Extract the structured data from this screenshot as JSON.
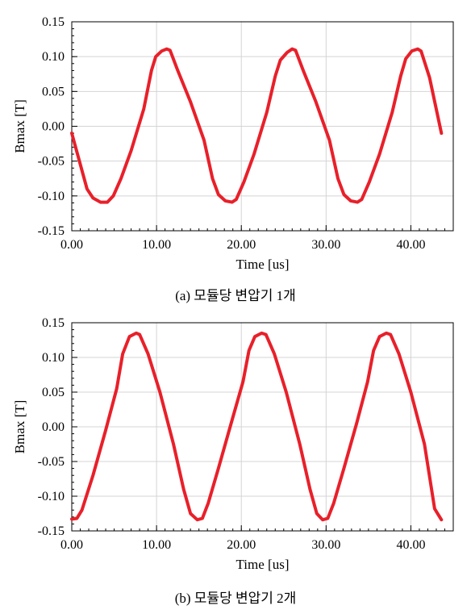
{
  "chart_data": [
    {
      "type": "line",
      "caption": "(a) 모듈당 변압기 1개",
      "xlabel": "Time [us]",
      "ylabel": "Bmax [T]",
      "xlim": [
        0,
        45
      ],
      "ylim": [
        -0.15,
        0.15
      ],
      "xticks": [
        "0.00",
        "10.00",
        "20.00",
        "30.00",
        "40.00"
      ],
      "xtick_values": [
        0,
        10,
        20,
        30,
        40
      ],
      "yticks": [
        "0.15",
        "0.10",
        "0.05",
        "0.00",
        "-0.05",
        "-0.10",
        "-0.15"
      ],
      "ytick_values": [
        0.15,
        0.1,
        0.05,
        0.0,
        -0.05,
        -0.1,
        -0.15
      ],
      "grid": true,
      "series_color": "#e8202a",
      "series": [
        {
          "x": [
            0.0,
            1.8,
            2.5,
            3.4,
            4.2,
            4.9,
            5.8,
            7.0,
            8.5,
            9.4,
            9.9,
            10.6,
            11.2,
            11.6,
            12.5,
            14.0,
            15.6,
            16.6,
            17.3,
            18.1,
            18.9,
            19.4,
            20.3,
            21.5,
            23.0,
            24.0,
            24.6,
            25.4,
            26.0,
            26.4,
            27.3,
            28.8,
            30.4,
            31.4,
            32.1,
            32.9,
            33.7,
            34.2,
            35.1,
            36.3,
            37.8,
            38.8,
            39.4,
            40.1,
            40.8,
            41.2,
            42.2,
            43.6
          ],
          "y": [
            -0.01,
            -0.09,
            -0.103,
            -0.109,
            -0.109,
            -0.1,
            -0.075,
            -0.035,
            0.025,
            0.08,
            0.1,
            0.108,
            0.111,
            0.109,
            0.08,
            0.035,
            -0.02,
            -0.075,
            -0.098,
            -0.107,
            -0.109,
            -0.105,
            -0.08,
            -0.04,
            0.02,
            0.072,
            0.095,
            0.106,
            0.111,
            0.109,
            0.08,
            0.035,
            -0.02,
            -0.075,
            -0.098,
            -0.107,
            -0.109,
            -0.105,
            -0.08,
            -0.04,
            0.02,
            0.072,
            0.097,
            0.108,
            0.111,
            0.108,
            0.07,
            -0.01
          ]
        }
      ]
    },
    {
      "type": "line",
      "caption": "(b) 모듈당 변압기 2개",
      "xlabel": "Time [us]",
      "ylabel": "Bmax [T]",
      "xlim": [
        0,
        45
      ],
      "ylim": [
        -0.15,
        0.15
      ],
      "xticks": [
        "0.00",
        "10.00",
        "20.00",
        "30.00",
        "40.00"
      ],
      "xtick_values": [
        0,
        10,
        20,
        30,
        40
      ],
      "yticks": [
        "0.15",
        "0.10",
        "0.05",
        "0.00",
        "-0.05",
        "-0.10",
        "-0.15"
      ],
      "ytick_values": [
        0.15,
        0.1,
        0.05,
        0.0,
        -0.05,
        -0.1,
        -0.15
      ],
      "grid": true,
      "series_color": "#e8202a",
      "series": [
        {
          "x": [
            0.0,
            0.6,
            1.2,
            2.5,
            4.0,
            5.3,
            6.0,
            6.8,
            7.6,
            8.0,
            9.0,
            10.4,
            12.0,
            13.2,
            14.0,
            14.8,
            15.4,
            16.1,
            17.3,
            18.8,
            20.2,
            20.9,
            21.6,
            22.4,
            22.9,
            23.9,
            25.3,
            26.9,
            28.1,
            28.9,
            29.6,
            30.2,
            30.9,
            32.1,
            33.6,
            34.9,
            35.6,
            36.3,
            37.1,
            37.6,
            38.6,
            40.0,
            41.6,
            42.8,
            43.6
          ],
          "y": [
            -0.133,
            -0.132,
            -0.12,
            -0.07,
            -0.005,
            0.055,
            0.105,
            0.13,
            0.135,
            0.133,
            0.105,
            0.05,
            -0.025,
            -0.09,
            -0.125,
            -0.134,
            -0.132,
            -0.11,
            -0.06,
            0.005,
            0.065,
            0.11,
            0.13,
            0.135,
            0.133,
            0.105,
            0.05,
            -0.025,
            -0.09,
            -0.125,
            -0.134,
            -0.132,
            -0.11,
            -0.06,
            0.005,
            0.065,
            0.11,
            0.13,
            0.135,
            0.133,
            0.105,
            0.05,
            -0.025,
            -0.118,
            -0.134
          ]
        }
      ]
    }
  ]
}
